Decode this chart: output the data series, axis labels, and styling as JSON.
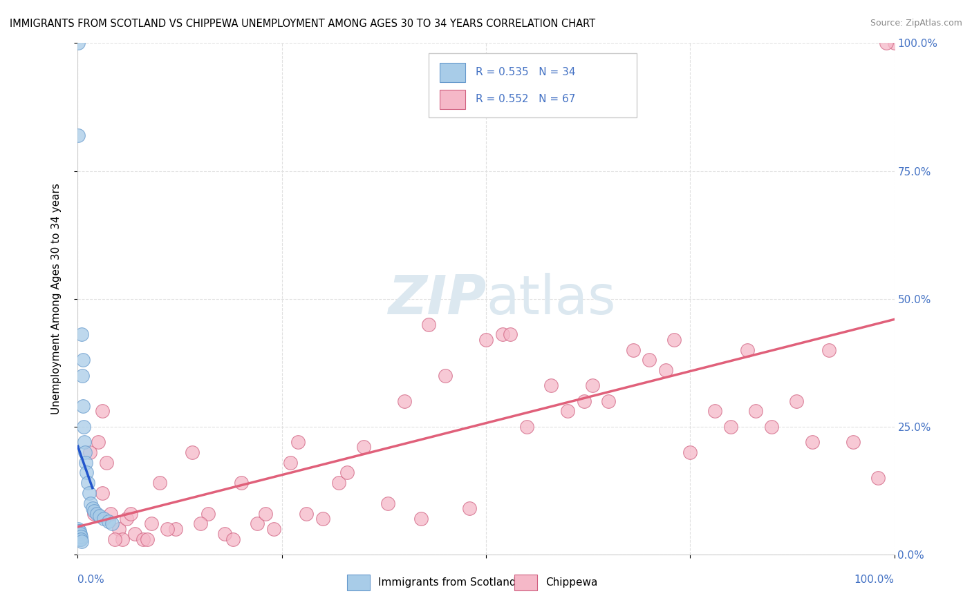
{
  "title": "IMMIGRANTS FROM SCOTLAND VS CHIPPEWA UNEMPLOYMENT AMONG AGES 30 TO 34 YEARS CORRELATION CHART",
  "source": "Source: ZipAtlas.com",
  "ylabel": "Unemployment Among Ages 30 to 34 years",
  "ytick_values": [
    0,
    25,
    50,
    75,
    100
  ],
  "legend1_label": "Immigrants from Scotland",
  "legend2_label": "Chippewa",
  "legend1_R": "R = 0.535",
  "legend1_N": "N = 34",
  "legend2_R": "R = 0.552",
  "legend2_N": "N = 67",
  "color_blue": "#a8cce8",
  "color_pink": "#f5b8c8",
  "color_blue_line": "#2255cc",
  "color_pink_line": "#e0607a",
  "color_blue_edge": "#6699cc",
  "color_pink_edge": "#d06080",
  "color_axis_text": "#4472C4",
  "xlim": [
    0,
    100
  ],
  "ylim": [
    0,
    100
  ],
  "background_color": "#ffffff",
  "watermark_color": "#dce8f0",
  "scotland_x": [
    0.05,
    0.08,
    0.1,
    0.12,
    0.15,
    0.18,
    0.2,
    0.22,
    0.25,
    0.28,
    0.3,
    0.35,
    0.4,
    0.45,
    0.5,
    0.55,
    0.6,
    0.65,
    0.7,
    0.8,
    0.9,
    1.0,
    1.1,
    1.2,
    1.4,
    1.6,
    1.8,
    2.0,
    2.3,
    2.7,
    3.2,
    3.8,
    4.2,
    0.06
  ],
  "scotland_y": [
    100.0,
    5.0,
    4.5,
    4.0,
    3.5,
    4.0,
    3.0,
    4.5,
    3.0,
    4.0,
    3.0,
    3.5,
    3.0,
    2.5,
    43.0,
    35.0,
    38.0,
    29.0,
    25.0,
    22.0,
    20.0,
    18.0,
    16.0,
    14.0,
    12.0,
    10.0,
    9.0,
    8.5,
    8.0,
    7.5,
    7.0,
    6.5,
    6.0,
    82.0
  ],
  "chippewa_x": [
    1.5,
    2.0,
    2.5,
    3.0,
    3.5,
    4.0,
    5.0,
    5.5,
    6.0,
    7.0,
    8.0,
    9.0,
    10.0,
    12.0,
    14.0,
    16.0,
    18.0,
    20.0,
    22.0,
    24.0,
    26.0,
    28.0,
    30.0,
    32.0,
    35.0,
    38.0,
    40.0,
    42.0,
    45.0,
    48.0,
    50.0,
    52.0,
    55.0,
    58.0,
    60.0,
    62.0,
    65.0,
    68.0,
    70.0,
    72.0,
    75.0,
    78.0,
    80.0,
    82.0,
    85.0,
    88.0,
    90.0,
    92.0,
    95.0,
    98.0,
    100.0,
    99.0,
    3.0,
    4.5,
    6.5,
    8.5,
    11.0,
    15.0,
    19.0,
    23.0,
    27.0,
    33.0,
    43.0,
    53.0,
    63.0,
    73.0,
    83.0
  ],
  "chippewa_y": [
    20.0,
    8.0,
    22.0,
    12.0,
    18.0,
    8.0,
    5.0,
    3.0,
    7.0,
    4.0,
    3.0,
    6.0,
    14.0,
    5.0,
    20.0,
    8.0,
    4.0,
    14.0,
    6.0,
    5.0,
    18.0,
    8.0,
    7.0,
    14.0,
    21.0,
    10.0,
    30.0,
    7.0,
    35.0,
    9.0,
    42.0,
    43.0,
    25.0,
    33.0,
    28.0,
    30.0,
    30.0,
    40.0,
    38.0,
    36.0,
    20.0,
    28.0,
    25.0,
    40.0,
    25.0,
    30.0,
    22.0,
    40.0,
    22.0,
    15.0,
    100.0,
    100.0,
    28.0,
    3.0,
    8.0,
    3.0,
    5.0,
    6.0,
    3.0,
    8.0,
    22.0,
    16.0,
    45.0,
    43.0,
    33.0,
    42.0,
    28.0
  ],
  "grid_color": "#e0e0e0",
  "grid_linestyle": "--"
}
